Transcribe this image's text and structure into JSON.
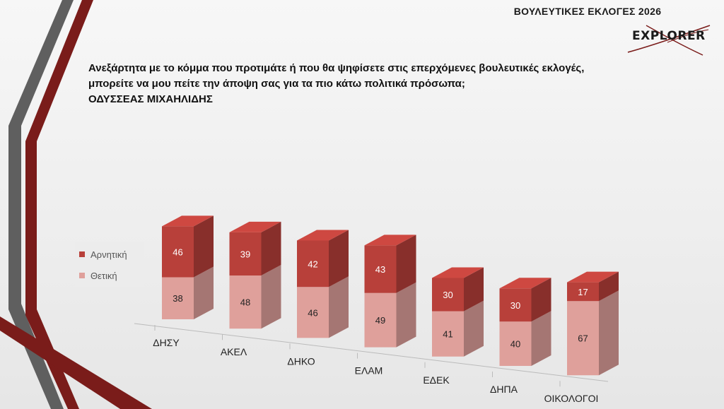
{
  "header": {
    "title": "ΒΟΥΛΕΥΤΙΚΕΣ ΕΚΛΟΓΕΣ 2026",
    "logo_text": "EXPLORER"
  },
  "question": {
    "line1": "Ανεξάρτητα με το κόμμα που προτιμάτε ή που θα ψηφίσετε στις επερχόμενες βουλευτικές εκλογές,",
    "line2": "μπορείτε να μου πείτε την άποψη σας για τα πιο κάτω πολιτικά πρόσωπα;",
    "line3": "ΟΔΥΣΣΕΑΣ ΜΙΧΑΗΛΙΔΗΣ"
  },
  "colors": {
    "negative": "#b8403a",
    "positive": "#dfa09b",
    "accent_dark": "#7a1c1a",
    "stripe_gray": "#5f5f5f"
  },
  "chart_data": {
    "type": "bar",
    "stacked": true,
    "style": "3d",
    "categories": [
      "ΔΗΣΥ",
      "ΑΚΕΛ",
      "ΔΗΚΟ",
      "ΕΛΑΜ",
      "ΕΔΕΚ",
      "ΔΗΠΑ",
      "ΟΙΚΟΛΟΓΟΙ"
    ],
    "series": [
      {
        "name": "Θετική",
        "values": [
          38,
          48,
          46,
          49,
          41,
          40,
          67
        ]
      },
      {
        "name": "Αρνητική",
        "values": [
          46,
          39,
          42,
          43,
          30,
          30,
          17
        ]
      }
    ],
    "data_labels": true,
    "gridlines": false,
    "legend_position": "left"
  }
}
